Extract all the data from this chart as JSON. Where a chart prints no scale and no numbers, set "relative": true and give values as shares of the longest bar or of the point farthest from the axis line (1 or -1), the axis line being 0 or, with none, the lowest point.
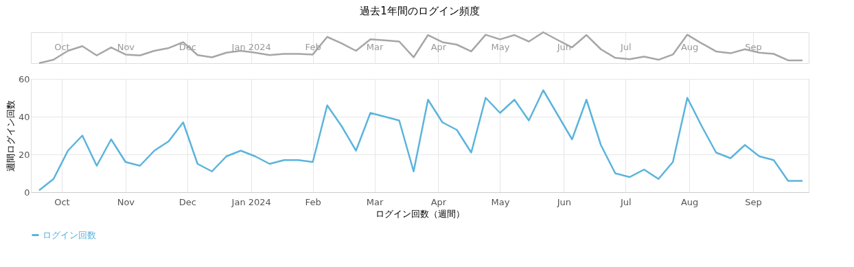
{
  "chart_data": [
    {
      "type": "line",
      "title": "過去1年間のログイン頻度",
      "relative": true,
      "x": [
        "2023-10-05",
        "2023-10-12",
        "2023-10-19",
        "2023-10-26",
        "2023-11-02",
        "2023-11-09",
        "2023-11-16",
        "2023-11-23",
        "2023-11-30",
        "2023-12-07",
        "2023-12-14",
        "2023-12-21",
        "2023-12-28",
        "2024-01-04",
        "2024-01-11",
        "2024-01-18",
        "2024-01-25",
        "2024-02-01",
        "2024-02-08",
        "2024-02-15",
        "2024-02-22",
        "2024-02-29",
        "2024-03-07",
        "2024-03-14",
        "2024-03-21",
        "2024-03-28",
        "2024-04-04",
        "2024-04-11",
        "2024-04-18",
        "2024-04-25",
        "2024-05-02",
        "2024-05-09",
        "2024-05-16",
        "2024-05-23",
        "2024-05-30",
        "2024-06-06",
        "2024-06-13",
        "2024-06-20",
        "2024-06-27",
        "2024-07-04",
        "2024-07-11",
        "2024-07-18",
        "2024-07-25",
        "2024-08-01",
        "2024-08-08",
        "2024-08-15",
        "2024-08-22",
        "2024-08-29",
        "2024-09-05",
        "2024-09-12",
        "2024-09-19",
        "2024-09-26",
        "2024-10-03",
        "2024-10-10"
      ],
      "xlim": [
        "2023-10-01",
        "2024-10-13"
      ],
      "xticks": [
        {
          "value": "2023-10-16",
          "label": "Oct"
        },
        {
          "value": "2023-11-16",
          "label": "Nov"
        },
        {
          "value": "2023-12-16",
          "label": "Dec"
        },
        {
          "value": "2024-01-16",
          "label": "Jan 2024"
        },
        {
          "value": "2024-02-15",
          "label": "Feb"
        },
        {
          "value": "2024-03-16",
          "label": "Mar"
        },
        {
          "value": "2024-04-16",
          "label": "Apr"
        },
        {
          "value": "2024-05-16",
          "label": "May"
        },
        {
          "value": "2024-06-16",
          "label": "Jun"
        },
        {
          "value": "2024-07-16",
          "label": "Jul"
        },
        {
          "value": "2024-08-16",
          "label": "Aug"
        },
        {
          "value": "2024-09-16",
          "label": "Sep"
        }
      ],
      "tick_labels": "x",
      "marker": "none",
      "line_style": "solid",
      "legend": false,
      "grid": "x",
      "series": [
        {
          "color": "#a6a6a6",
          "values": [
            0,
            0.11,
            0.4,
            0.55,
            0.25,
            0.51,
            0.28,
            0.25,
            0.4,
            0.49,
            0.68,
            0.26,
            0.19,
            0.34,
            0.4,
            0.34,
            0.26,
            0.3,
            0.3,
            0.28,
            0.85,
            0.64,
            0.4,
            0.77,
            0.74,
            0.7,
            0.19,
            0.91,
            0.68,
            0.6,
            0.38,
            0.92,
            0.77,
            0.91,
            0.7,
            1,
            0.75,
            0.51,
            0.91,
            0.45,
            0.17,
            0.13,
            0.21,
            0.11,
            0.28,
            0.92,
            0.64,
            0.38,
            0.32,
            0.45,
            0.34,
            0.3,
            0.09,
            0.09
          ]
        }
      ]
    },
    {
      "type": "line",
      "xlabel": "ログイン回数（週間）",
      "ylabel": "週間ログイン回数",
      "x": [
        "2023-10-05",
        "2023-10-12",
        "2023-10-19",
        "2023-10-26",
        "2023-11-02",
        "2023-11-09",
        "2023-11-16",
        "2023-11-23",
        "2023-11-30",
        "2023-12-07",
        "2023-12-14",
        "2023-12-21",
        "2023-12-28",
        "2024-01-04",
        "2024-01-11",
        "2024-01-18",
        "2024-01-25",
        "2024-02-01",
        "2024-02-08",
        "2024-02-15",
        "2024-02-22",
        "2024-02-29",
        "2024-03-07",
        "2024-03-14",
        "2024-03-21",
        "2024-03-28",
        "2024-04-04",
        "2024-04-11",
        "2024-04-18",
        "2024-04-25",
        "2024-05-02",
        "2024-05-09",
        "2024-05-16",
        "2024-05-23",
        "2024-05-30",
        "2024-06-06",
        "2024-06-13",
        "2024-06-20",
        "2024-06-27",
        "2024-07-04",
        "2024-07-11",
        "2024-07-18",
        "2024-07-25",
        "2024-08-01",
        "2024-08-08",
        "2024-08-15",
        "2024-08-22",
        "2024-08-29",
        "2024-09-05",
        "2024-09-12",
        "2024-09-19",
        "2024-09-26",
        "2024-10-03",
        "2024-10-10"
      ],
      "xlim": [
        "2023-10-01",
        "2024-10-13"
      ],
      "xticks": [
        {
          "value": "2023-10-16",
          "label": "Oct"
        },
        {
          "value": "2023-11-16",
          "label": "Nov"
        },
        {
          "value": "2023-12-16",
          "label": "Dec"
        },
        {
          "value": "2024-01-16",
          "label": "Jan 2024"
        },
        {
          "value": "2024-02-15",
          "label": "Feb"
        },
        {
          "value": "2024-03-16",
          "label": "Mar"
        },
        {
          "value": "2024-04-16",
          "label": "Apr"
        },
        {
          "value": "2024-05-16",
          "label": "May"
        },
        {
          "value": "2024-06-16",
          "label": "Jun"
        },
        {
          "value": "2024-07-16",
          "label": "Jul"
        },
        {
          "value": "2024-08-16",
          "label": "Aug"
        },
        {
          "value": "2024-09-16",
          "label": "Sep"
        }
      ],
      "ylim": [
        0,
        60
      ],
      "yticks": [
        0,
        20,
        40,
        60
      ],
      "grid": true,
      "legend": "bottom",
      "marker": "none",
      "line_style": "solid",
      "series": [
        {
          "name": "ログイン回数",
          "color": "#5ab4dc",
          "values": [
            1,
            7,
            22,
            30,
            14,
            28,
            16,
            14,
            22,
            27,
            37,
            15,
            11,
            19,
            22,
            19,
            15,
            17,
            17,
            16,
            46,
            35,
            22,
            42,
            40,
            38,
            11,
            49,
            37,
            33,
            21,
            50,
            42,
            49,
            38,
            54,
            41,
            28,
            49,
            25,
            10,
            8,
            12,
            7,
            16,
            50,
            35,
            21,
            18,
            25,
            19,
            17,
            6,
            6
          ]
        }
      ]
    }
  ]
}
